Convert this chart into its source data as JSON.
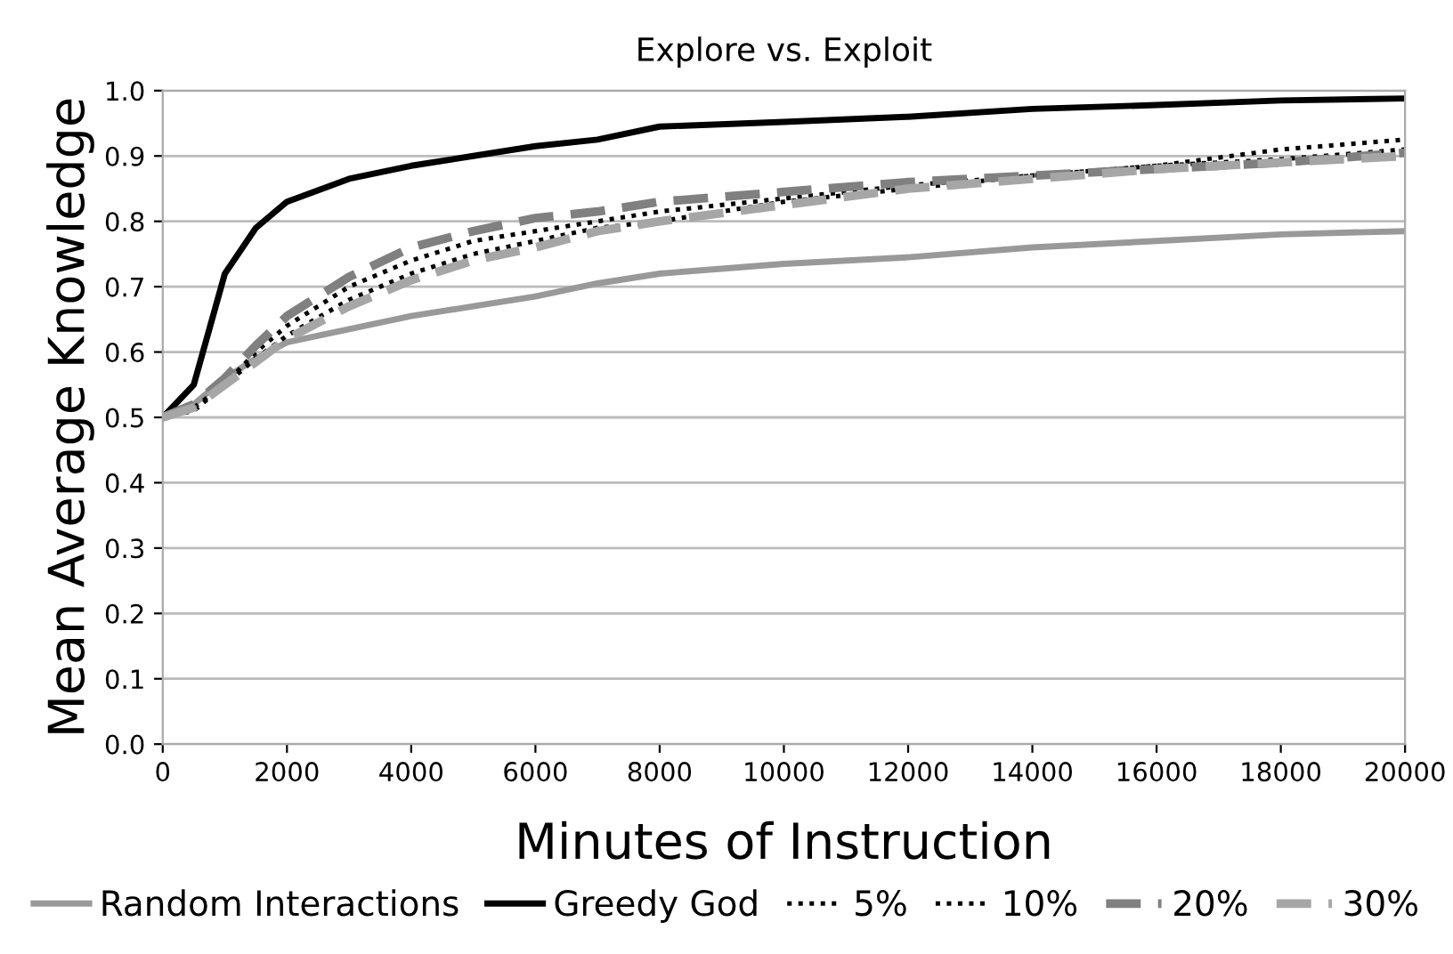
{
  "chart_data": {
    "type": "line",
    "title": "Explore vs. Exploit",
    "xlabel": "Minutes of Instruction",
    "ylabel": "Mean Average Knowledge",
    "x": [
      0,
      500,
      1000,
      1500,
      2000,
      3000,
      4000,
      5000,
      6000,
      7000,
      8000,
      10000,
      12000,
      14000,
      16000,
      18000,
      20000
    ],
    "series": [
      {
        "name": "Random Interactions",
        "color": "#999999",
        "line_style": "solid",
        "values": [
          0.5,
          0.52,
          0.56,
          0.59,
          0.615,
          0.635,
          0.655,
          0.67,
          0.685,
          0.705,
          0.72,
          0.735,
          0.745,
          0.76,
          0.77,
          0.78,
          0.785
        ]
      },
      {
        "name": "Greedy God",
        "color": "#000000",
        "line_style": "solid",
        "values": [
          0.5,
          0.55,
          0.72,
          0.79,
          0.83,
          0.865,
          0.885,
          0.9,
          0.915,
          0.925,
          0.945,
          0.952,
          0.96,
          0.972,
          0.978,
          0.985,
          0.988
        ]
      },
      {
        "name": "5%",
        "color": "#000000",
        "line_style": "dotted",
        "values": [
          0.5,
          0.51,
          0.55,
          0.59,
          0.625,
          0.68,
          0.72,
          0.75,
          0.77,
          0.79,
          0.8,
          0.83,
          0.85,
          0.87,
          0.885,
          0.895,
          0.91
        ]
      },
      {
        "name": "10%",
        "color": "#000000",
        "line_style": "dotted",
        "values": [
          0.5,
          0.515,
          0.55,
          0.6,
          0.64,
          0.7,
          0.74,
          0.77,
          0.785,
          0.8,
          0.815,
          0.835,
          0.855,
          0.87,
          0.885,
          0.91,
          0.925
        ]
      },
      {
        "name": "20%",
        "color": "#808080",
        "line_style": "dashed",
        "values": [
          0.5,
          0.52,
          0.56,
          0.61,
          0.655,
          0.715,
          0.76,
          0.785,
          0.805,
          0.815,
          0.83,
          0.845,
          0.86,
          0.87,
          0.88,
          0.89,
          0.905
        ]
      },
      {
        "name": "30%",
        "color": "#a6a6a6",
        "line_style": "dashed",
        "values": [
          0.5,
          0.515,
          0.55,
          0.585,
          0.62,
          0.67,
          0.71,
          0.74,
          0.76,
          0.785,
          0.8,
          0.825,
          0.85,
          0.865,
          0.88,
          0.89,
          0.9
        ]
      }
    ],
    "xlim": [
      0,
      20000
    ],
    "xticks": [
      0,
      2000,
      4000,
      6000,
      8000,
      10000,
      12000,
      14000,
      16000,
      18000,
      20000
    ],
    "ylim": [
      0.0,
      1.0
    ],
    "yticks": [
      {
        "value": 0.0,
        "label": "0.0"
      },
      {
        "value": 0.1,
        "label": "0.1"
      },
      {
        "value": 0.2,
        "label": "0.2"
      },
      {
        "value": 0.3,
        "label": "0.3"
      },
      {
        "value": 0.4,
        "label": "0.4"
      },
      {
        "value": 0.5,
        "label": "0.5"
      },
      {
        "value": 0.6,
        "label": "0.6"
      },
      {
        "value": 0.7,
        "label": "0.7"
      },
      {
        "value": 0.8,
        "label": "0.8"
      },
      {
        "value": 0.9,
        "label": "0.9"
      },
      {
        "value": 1.0,
        "label": "1.0"
      }
    ],
    "grid": "y",
    "legend": "bottom"
  }
}
